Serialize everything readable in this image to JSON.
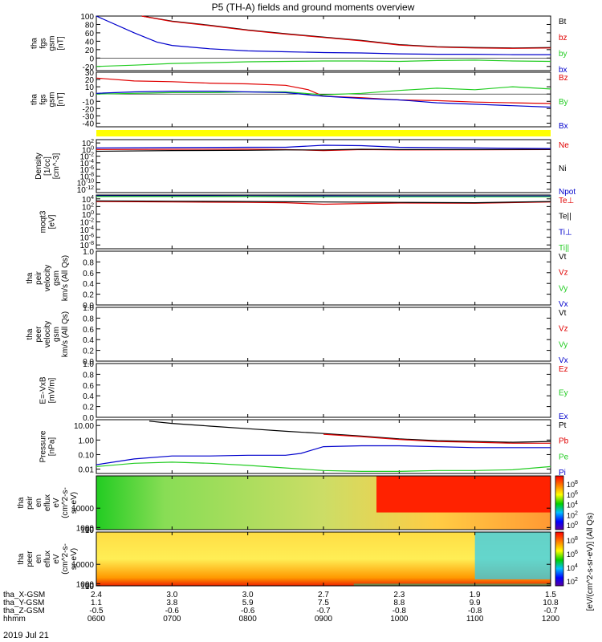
{
  "title": "P5 (TH-A) fields and ground moments overview",
  "date_label": "2019 Jul 21",
  "colors": {
    "black": "#000000",
    "red": "#e00000",
    "green": "#22cc22",
    "blue": "#0000cc",
    "yellow": "#ffff00"
  },
  "chart_data": [
    {
      "type": "line",
      "ylabel": [
        "tha",
        "fgs",
        "gsm",
        "[nT]"
      ],
      "yticks": [
        "100",
        "80",
        "60",
        "40",
        "20",
        "0",
        "-20"
      ],
      "ylim": [
        -30,
        100
      ],
      "legend": [
        {
          "label": "Bt",
          "color": "black"
        },
        {
          "label": "bz",
          "color": "red"
        },
        {
          "label": "by",
          "color": "green"
        },
        {
          "label": "bx",
          "color": "blue"
        }
      ],
      "series": [
        {
          "name": "Bt",
          "color": "black",
          "x": [
            6.6,
            7.0,
            7.5,
            8.0,
            8.5,
            9.0,
            9.5,
            10.0,
            10.5,
            11.0,
            11.5,
            12.0
          ],
          "y": [
            100,
            88,
            78,
            67,
            58,
            50,
            42,
            32,
            27,
            25,
            24,
            25
          ]
        },
        {
          "name": "bz",
          "color": "red",
          "x": [
            6.6,
            7.0,
            7.5,
            8.0,
            8.5,
            9.0,
            9.5,
            10.0,
            10.5,
            11.0,
            11.5,
            12.0
          ],
          "y": [
            100,
            87,
            77,
            66,
            57,
            49,
            41,
            31,
            26,
            24,
            23,
            24
          ]
        },
        {
          "name": "by",
          "color": "green",
          "x": [
            6.0,
            6.5,
            7.0,
            7.5,
            8.0,
            8.5,
            9.0,
            9.5,
            10.0,
            10.5,
            11.0,
            11.5,
            12.0
          ],
          "y": [
            -20,
            -17,
            -13,
            -11,
            -9,
            -8,
            -7,
            -7,
            -8,
            -6,
            -5,
            -7,
            -8
          ]
        },
        {
          "name": "bx",
          "color": "blue",
          "x": [
            6.0,
            6.5,
            6.8,
            7.0,
            7.5,
            8.0,
            8.5,
            9.0,
            9.5,
            10.0,
            10.5,
            11.0,
            11.5,
            12.0
          ],
          "y": [
            110,
            60,
            38,
            30,
            22,
            17,
            15,
            13,
            12,
            10,
            9,
            9,
            8,
            8
          ]
        }
      ]
    },
    {
      "type": "line",
      "ylabel": [
        "tha",
        "fgs",
        "gsm",
        "[nT]"
      ],
      "yticks": [
        "30",
        "20",
        "10",
        "0",
        "-10",
        "-20",
        "-30",
        "-40"
      ],
      "ylim": [
        -45,
        30
      ],
      "legend": [
        {
          "label": "Bz",
          "color": "red"
        },
        {
          "label": "By",
          "color": "green"
        },
        {
          "label": "Bx",
          "color": "blue"
        }
      ],
      "series": [
        {
          "name": "Bz",
          "color": "red",
          "x": [
            6.0,
            6.5,
            7.0,
            7.5,
            8.0,
            8.5,
            8.8,
            9.0,
            9.5,
            10.0,
            10.5,
            11.0,
            11.5,
            12.0
          ],
          "y": [
            22,
            18,
            17,
            15,
            14,
            12,
            6,
            -3,
            -5,
            -8,
            -9,
            -11,
            -12,
            -13
          ]
        },
        {
          "name": "By",
          "color": "green",
          "x": [
            6.0,
            6.5,
            7.0,
            7.5,
            8.0,
            8.5,
            9.0,
            9.5,
            10.0,
            10.5,
            11.0,
            11.5,
            12.0
          ],
          "y": [
            0,
            1,
            2,
            2,
            3,
            3,
            -1,
            1,
            5,
            8,
            6,
            10,
            7
          ]
        },
        {
          "name": "Bx",
          "color": "blue",
          "x": [
            6.0,
            6.5,
            7.0,
            7.5,
            8.0,
            8.5,
            8.8,
            9.0,
            9.5,
            10.0,
            10.5,
            11.0,
            11.5,
            12.0
          ],
          "y": [
            1,
            3,
            4,
            4,
            3,
            2,
            -1,
            -3,
            -6,
            -8,
            -12,
            -14,
            -16,
            -18
          ]
        }
      ]
    },
    {
      "type": "line",
      "yscale": "log",
      "ylabel": [
        "Density",
        "[1/cc]",
        "[cm^-3]"
      ],
      "yticks": [
        "10^2",
        "10^0",
        "10^-2",
        "10^-4",
        "10^-6",
        "10^-8",
        "10^-10",
        "10^-12"
      ],
      "ylim": [
        1e-13,
        1000.0
      ],
      "legend": [
        {
          "label": "Ne",
          "color": "red"
        },
        {
          "label": "Ni",
          "color": "black"
        },
        {
          "label": "Npot",
          "color": "blue"
        }
      ],
      "series": [
        {
          "name": "Ne",
          "color": "red",
          "x": [
            6.0,
            7.0,
            8.0,
            8.5,
            9.0,
            9.5,
            10.0,
            11.0,
            12.0
          ],
          "y": [
            1,
            1.2,
            1.3,
            1,
            0.5,
            1,
            0.8,
            0.9,
            1
          ]
        },
        {
          "name": "Ni",
          "color": "black",
          "x": [
            6.0,
            7.0,
            8.0,
            8.5,
            9.0,
            9.5,
            10.0,
            11.0,
            12.0
          ],
          "y": [
            0.3,
            0.5,
            0.6,
            0.8,
            0.8,
            1.2,
            1,
            1,
            1.1
          ]
        },
        {
          "name": "Npot",
          "color": "blue",
          "x": [
            6.0,
            7.0,
            8.0,
            8.5,
            9.0,
            9.5,
            10.0,
            11.0,
            12.0
          ],
          "y": [
            3,
            4,
            5,
            5,
            20,
            15,
            5,
            3,
            2
          ]
        }
      ]
    },
    {
      "type": "line",
      "yscale": "log",
      "ylabel": [
        "moqt3",
        "[eV]"
      ],
      "yticks": [
        "10^4",
        "10^2",
        "10^0",
        "10^-2",
        "10^-4",
        "10^-6",
        "10^-8"
      ],
      "ylim": [
        1e-09,
        100000.0
      ],
      "legend": [
        {
          "label": "Te⊥",
          "color": "red"
        },
        {
          "label": "Te||",
          "color": "black"
        },
        {
          "label": "Ti⊥",
          "color": "blue"
        },
        {
          "label": "Ti||",
          "color": "green"
        }
      ],
      "series": [
        {
          "name": "Te⊥",
          "color": "red",
          "x": [
            6.0,
            7.0,
            8.0,
            8.5,
            9.0,
            9.5,
            10.0,
            11.0,
            12.0
          ],
          "y": [
            2000,
            1500,
            1200,
            1000,
            400,
            600,
            800,
            700,
            1500
          ]
        },
        {
          "name": "Te||",
          "color": "black",
          "x": [
            6.0,
            7.0,
            8.0,
            9.0,
            10.0,
            11.0,
            12.0
          ],
          "y": [
            3000,
            2500,
            2000,
            1500,
            1200,
            1000,
            2000
          ]
        },
        {
          "name": "Ti⊥",
          "color": "blue",
          "x": [
            6.0,
            7.0,
            8.0,
            9.0,
            10.0,
            11.0,
            12.0
          ],
          "y": [
            60000,
            60000,
            55000,
            55000,
            50000,
            50000,
            50000
          ]
        },
        {
          "name": "Ti||",
          "color": "green",
          "x": [
            6.0,
            7.0,
            8.0,
            9.0,
            10.0,
            11.0,
            12.0
          ],
          "y": [
            40000,
            40000,
            40000,
            35000,
            35000,
            35000,
            35000
          ]
        }
      ]
    },
    {
      "type": "line",
      "ylabel": [
        "tha",
        "peir",
        "velocity",
        "gsm",
        "km/s (All Qs)"
      ],
      "yticks": [
        "1.0",
        "0.8",
        "0.6",
        "0.4",
        "0.2",
        "0.0"
      ],
      "ylim": [
        0,
        1
      ],
      "legend": [
        {
          "label": "Vt",
          "color": "black"
        },
        {
          "label": "Vz",
          "color": "red"
        },
        {
          "label": "Vy",
          "color": "green"
        },
        {
          "label": "Vx",
          "color": "blue"
        }
      ],
      "series": []
    },
    {
      "type": "line",
      "ylabel": [
        "tha",
        "peer",
        "velocity",
        "gsm",
        "km/s (All Qs)"
      ],
      "yticks": [
        "1.0",
        "0.8",
        "0.6",
        "0.4",
        "0.2",
        "0.0"
      ],
      "ylim": [
        0,
        1
      ],
      "legend": [
        {
          "label": "Vt",
          "color": "black"
        },
        {
          "label": "Vz",
          "color": "red"
        },
        {
          "label": "Vy",
          "color": "green"
        },
        {
          "label": "Vx",
          "color": "blue"
        }
      ],
      "series": []
    },
    {
      "type": "line",
      "ylabel": [
        "E=-VxB",
        "[mV/m]"
      ],
      "yticks": [
        "1.0",
        "0.8",
        "0.6",
        "0.4",
        "0.2",
        "0.0"
      ],
      "ylim": [
        0,
        1
      ],
      "legend": [
        {
          "label": "Ez",
          "color": "red"
        },
        {
          "label": "Ey",
          "color": "green"
        },
        {
          "label": "Ex",
          "color": "blue"
        }
      ],
      "series": []
    },
    {
      "type": "line",
      "yscale": "log",
      "ylabel": [
        "Pressure",
        "[nPa]"
      ],
      "yticks": [
        "10.00",
        "1.00",
        "0.10",
        "0.01"
      ],
      "ylim": [
        0.005,
        25
      ],
      "legend": [
        {
          "label": "Pt",
          "color": "black"
        },
        {
          "label": "Pb",
          "color": "red"
        },
        {
          "label": "Pe",
          "color": "green"
        },
        {
          "label": "Pi",
          "color": "blue"
        }
      ],
      "series": [
        {
          "name": "Pt",
          "color": "black",
          "x": [
            6.7,
            7.0,
            7.5,
            8.0,
            8.5,
            9.0,
            9.5,
            10.0,
            10.5,
            11.0,
            11.5,
            12.0
          ],
          "y": [
            20,
            14,
            9,
            6,
            4,
            2.8,
            1.9,
            1.2,
            0.9,
            0.8,
            0.7,
            0.8
          ]
        },
        {
          "name": "Pb",
          "color": "red",
          "x": [
            9.0,
            9.5,
            10.0,
            10.5,
            11.0,
            11.5,
            12.0
          ],
          "y": [
            2.5,
            1.7,
            1.1,
            0.8,
            0.7,
            0.6,
            0.6
          ]
        },
        {
          "name": "Pe",
          "color": "green",
          "x": [
            6.0,
            6.5,
            7.0,
            7.5,
            8.0,
            8.5,
            9.0,
            9.5,
            10.0,
            10.5,
            11.0,
            11.5,
            12.0
          ],
          "y": [
            0.015,
            0.025,
            0.03,
            0.025,
            0.018,
            0.012,
            0.008,
            0.007,
            0.007,
            0.008,
            0.008,
            0.009,
            0.015
          ]
        },
        {
          "name": "Pi",
          "color": "blue",
          "x": [
            6.0,
            6.5,
            7.0,
            7.5,
            8.0,
            8.5,
            8.7,
            9.0,
            9.5,
            10.0,
            10.5,
            11.0,
            11.5,
            12.0
          ],
          "y": [
            0.02,
            0.05,
            0.08,
            0.08,
            0.09,
            0.09,
            0.12,
            0.35,
            0.4,
            0.4,
            0.35,
            0.3,
            0.3,
            0.3
          ]
        }
      ]
    },
    {
      "type": "heatmap",
      "ylabel": [
        "tha",
        "peir",
        "en",
        "eflux",
        "eV",
        "(cm^2-s-",
        "sr-eV)"
      ],
      "yticks": [
        "10000",
        "1000",
        "100",
        "10"
      ],
      "ylim": [
        5,
        25000
      ],
      "colorbar": {
        "label": "[eV/(cm^2-s-sr-eV)] (All Qs)",
        "ticks": [
          "10^8",
          "10^6",
          "10^4",
          "10^2",
          "10^0"
        ]
      }
    },
    {
      "type": "heatmap",
      "ylabel": [
        "tha",
        "peer",
        "en",
        "eflux",
        "eV",
        "(cm^2-s-",
        "sr-eV)"
      ],
      "yticks": [
        "10000",
        "1000",
        "100",
        "10"
      ],
      "ylim": [
        5,
        25000
      ],
      "colorbar": {
        "label": "[eV/(cm^2-s-sr-eV)] (All Qs)",
        "ticks": [
          "10^8",
          "10^6",
          "10^4",
          "10^2"
        ]
      }
    }
  ],
  "xaxis": {
    "rows": [
      {
        "label": "tha_X-GSM",
        "values": [
          "2.4",
          "3.0",
          "3.0",
          "2.7",
          "2.3",
          "1.9",
          "1.5"
        ]
      },
      {
        "label": "tha_Y-GSM",
        "values": [
          "1.1",
          "3.8",
          "5.9",
          "7.5",
          "8.8",
          "9.9",
          "10.8"
        ]
      },
      {
        "label": "tha_Z-GSM",
        "values": [
          "-0.5",
          "-0.6",
          "-0.6",
          "-0.7",
          "-0.8",
          "-0.8",
          "-0.7"
        ]
      },
      {
        "label": "hhmm",
        "values": [
          "0600",
          "0700",
          "0800",
          "0900",
          "1000",
          "1100",
          "1200"
        ]
      }
    ]
  }
}
